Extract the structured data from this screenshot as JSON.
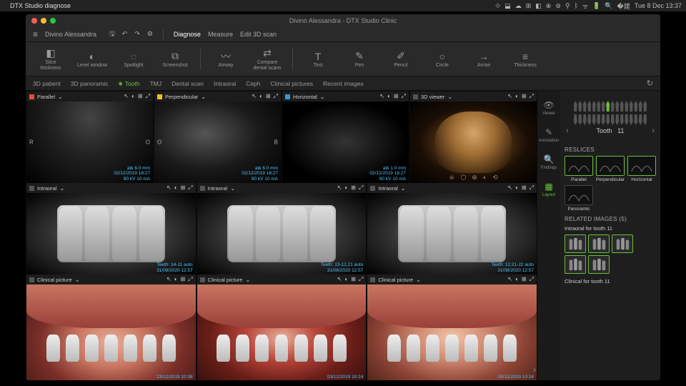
{
  "mac": {
    "appname": "DTX Studio diagnose",
    "clock": "Tue 8 Dec  13:37"
  },
  "window": {
    "title": "Divino Alessandra - DTX Studio Clinic"
  },
  "toolbar1": {
    "patient": "Divino Alessandra",
    "menus": [
      "Diagnose",
      "Measure",
      "Edit 3D scan"
    ]
  },
  "tools": [
    {
      "icon": "◧",
      "label": "Slice\nthickness"
    },
    {
      "icon": "◐",
      "label": "Level window"
    },
    {
      "icon": "◌",
      "label": "Spotlight"
    },
    {
      "icon": "⧉",
      "label": "Screenshot"
    },
    {
      "sep": true
    },
    {
      "icon": "〰",
      "label": "Airway"
    },
    {
      "icon": "⇄",
      "label": "Compare\ndental scans"
    },
    {
      "sep": true
    },
    {
      "icon": "T",
      "label": "Text"
    },
    {
      "icon": "✎",
      "label": "Pen"
    },
    {
      "icon": "✐",
      "label": "Pencil"
    },
    {
      "icon": "○",
      "label": "Circle"
    },
    {
      "icon": "→",
      "label": "Arrow"
    },
    {
      "icon": "≡",
      "label": "Thickness"
    }
  ],
  "tabs": [
    {
      "label": "3D patient"
    },
    {
      "label": "3D panoramic"
    },
    {
      "label": "Tooth",
      "active": true,
      "dot": "#6dbf3b"
    },
    {
      "label": "TMJ"
    },
    {
      "label": "Dental scan"
    },
    {
      "label": "Intraoral"
    },
    {
      "label": "Ceph"
    },
    {
      "label": "Clinical pictures"
    },
    {
      "label": "Recent images"
    }
  ],
  "panels": {
    "row1": [
      {
        "title": "Parallel",
        "color": "#e74c3c",
        "overlay": "atk 6.0 mm\n02/12/2019 18:27\n90 kV  10 mA",
        "letters": [
          "R",
          "O"
        ],
        "cls": "xray-a"
      },
      {
        "title": "Perpendicular",
        "color": "#f1c40f",
        "overlay": "atk 6.0 mm\n02/12/2019 18:27\n90 kV  10 mA",
        "letters": [
          "O",
          "B"
        ],
        "cls": "xray-b"
      },
      {
        "title": "Horizontal",
        "color": "#3498db",
        "overlay": "atk 1.0 mm\n02/12/2019 18:27\n90 kV  10 mA",
        "cls": "xray-c"
      },
      {
        "title": "3D viewer",
        "color": "#555",
        "is3d": true,
        "cls": "skull3d"
      }
    ],
    "row2": [
      {
        "title": "Intraoral",
        "color": "#555",
        "overlay": "Teeth: 14-11  auto\n31/08/2020 12:57",
        "cls": "intraoral"
      },
      {
        "title": "Intraoral",
        "color": "#555",
        "overlay": "Teeth: 13-12,21  auto\n31/08/2020 12:57",
        "cls": "intraoral"
      },
      {
        "title": "Intraoral",
        "color": "#555",
        "overlay": "Teeth: 12,21-22  auto\n31/08/2020 12:57",
        "cls": "intraoral"
      }
    ],
    "row3": [
      {
        "title": "Clinical picture",
        "color": "#555",
        "overlay": "23/12/2019 10:38",
        "cls": "clinical1"
      },
      {
        "title": "Clinical picture",
        "color": "#555",
        "overlay": "03/12/2019 10:24",
        "cls": "clinical2"
      },
      {
        "title": "Clinical picture",
        "color": "#555",
        "overlay": "03/12/2019 10:24",
        "cls": "clinical3"
      }
    ]
  },
  "sidebar": {
    "tooth_label": "Tooth",
    "tooth_number": "11",
    "icons": [
      {
        "glyph": "👁",
        "label": "Viewer"
      },
      {
        "glyph": "✎",
        "label": "Annotation"
      },
      {
        "glyph": "🔍",
        "label": "Findings"
      },
      {
        "glyph": "▦",
        "label": "Layout",
        "active": true
      }
    ],
    "reslices_title": "RESLICES",
    "reslices": [
      {
        "label": "Parallel"
      },
      {
        "label": "Perpendicular"
      },
      {
        "label": "Horizontal"
      },
      {
        "label": "Panoramic",
        "noborder": true
      }
    ],
    "related_title": "RELATED IMAGES (5)",
    "related_sub1": "Intraoral for tooth 11",
    "related_count1": 5,
    "related_sub2": "Clinical for tooth 11"
  },
  "colors": {
    "accent_green": "#6dbf3b",
    "overlay_cyan": "#4fc3f7",
    "bg_panel": "#1a1a1a"
  }
}
